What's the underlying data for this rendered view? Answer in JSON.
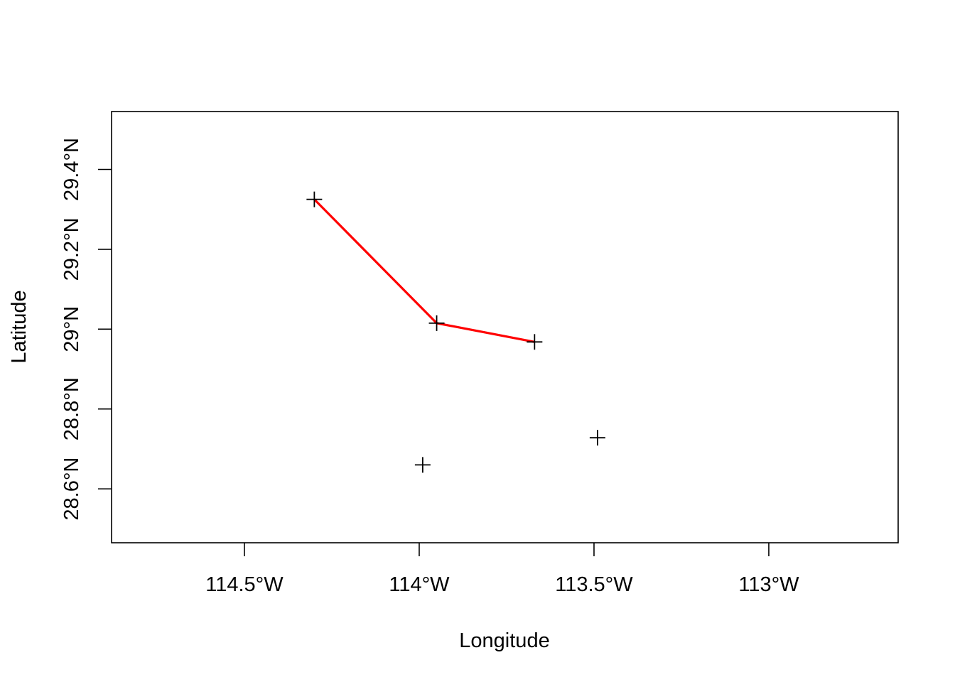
{
  "chart_data": {
    "type": "scatter",
    "title": "",
    "xlabel": "Longitude",
    "ylabel": "Latitude",
    "xlim": [
      -114.88,
      -112.63
    ],
    "ylim": [
      28.465,
      29.545
    ],
    "grid": false,
    "x_ticks": [
      {
        "value": -114.5,
        "label": "114.5°W"
      },
      {
        "value": -114.0,
        "label": "114°W"
      },
      {
        "value": -113.5,
        "label": "113.5°W"
      },
      {
        "value": -113.0,
        "label": "113°W"
      }
    ],
    "y_ticks": [
      {
        "value": 28.6,
        "label": "28.6°N"
      },
      {
        "value": 28.8,
        "label": "28.8°N"
      },
      {
        "value": 29.0,
        "label": "29°N"
      },
      {
        "value": 29.2,
        "label": "29.2°N"
      },
      {
        "value": 29.4,
        "label": "29.4°N"
      }
    ],
    "points": [
      {
        "x": -114.3,
        "y": 29.325
      },
      {
        "x": -113.95,
        "y": 29.015
      },
      {
        "x": -113.67,
        "y": 28.968
      },
      {
        "x": -113.99,
        "y": 28.66
      },
      {
        "x": -113.49,
        "y": 28.728
      }
    ],
    "track": {
      "color": "#ff0000",
      "x": [
        -114.3,
        -113.95,
        -113.67
      ],
      "y": [
        29.325,
        29.015,
        28.968
      ]
    },
    "point_marker": "plus",
    "point_color": "#000000"
  }
}
